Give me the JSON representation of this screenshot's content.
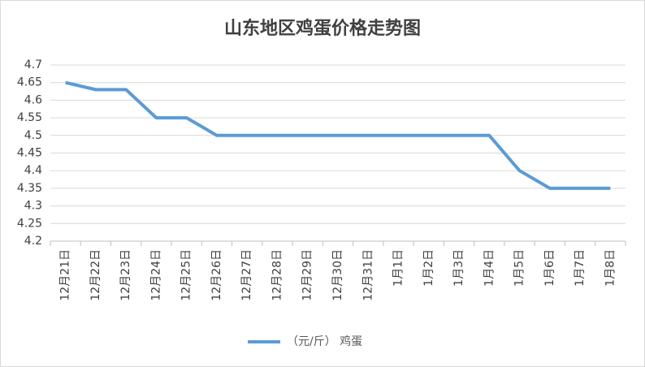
{
  "chart_data": {
    "type": "line",
    "title": "山东地区鸡蛋价格走势图",
    "categories": [
      "12月21日",
      "12月22日",
      "12月23日",
      "12月24日",
      "12月25日",
      "12月26日",
      "12月27日",
      "12月28日",
      "12月29日",
      "12月30日",
      "12月31日",
      "1月1日",
      "1月2日",
      "1月3日",
      "1月4日",
      "1月5日",
      "1月6日",
      "1月7日",
      "1月8日"
    ],
    "series": [
      {
        "name": "（元/斤） 鸡蛋",
        "color": "#5b9bd5",
        "values": [
          4.65,
          4.63,
          4.63,
          4.55,
          4.55,
          4.5,
          4.5,
          4.5,
          4.5,
          4.5,
          4.5,
          4.5,
          4.5,
          4.5,
          4.5,
          4.4,
          4.35,
          4.35,
          4.35
        ]
      }
    ],
    "ylim": [
      4.2,
      4.7
    ],
    "yticks": [
      4.2,
      4.25,
      4.3,
      4.35,
      4.4,
      4.45,
      4.5,
      4.55,
      4.6,
      4.65,
      4.7
    ],
    "grid": true
  }
}
